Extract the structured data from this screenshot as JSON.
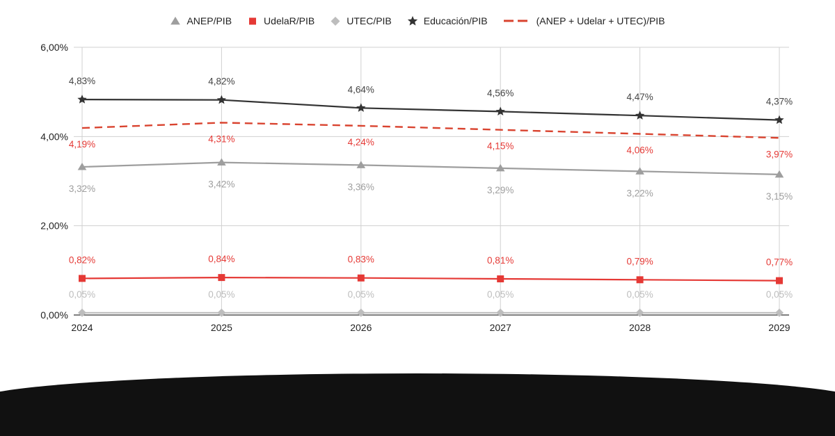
{
  "chart_data": {
    "type": "line",
    "categories": [
      "2024",
      "2025",
      "2026",
      "2027",
      "2028",
      "2029"
    ],
    "ylim": [
      0,
      6
    ],
    "yticks": [
      0,
      2,
      4,
      6
    ],
    "ytick_labels": [
      "0,00%",
      "2,00%",
      "4,00%",
      "6,00%"
    ],
    "grid": true,
    "legend_position": "top-center",
    "series": [
      {
        "name": "ANEP/PIB",
        "marker": "triangle",
        "line": "solid",
        "color": "#9e9e9e",
        "label_color": "#9e9e9e",
        "label_position": "below",
        "values": [
          3.32,
          3.42,
          3.36,
          3.29,
          3.22,
          3.15
        ],
        "labels": [
          "3,32%",
          "3,42%",
          "3,36%",
          "3,29%",
          "3,22%",
          "3,15%"
        ]
      },
      {
        "name": "UdelaR/PIB",
        "marker": "square",
        "line": "solid",
        "color": "#e53935",
        "label_color": "#e53935",
        "label_position": "above",
        "values": [
          0.82,
          0.84,
          0.83,
          0.81,
          0.79,
          0.77
        ],
        "labels": [
          "0,82%",
          "0,84%",
          "0,83%",
          "0,81%",
          "0,79%",
          "0,77%"
        ]
      },
      {
        "name": "UTEC/PIB",
        "marker": "diamond",
        "line": "solid",
        "color": "#bdbdbd",
        "label_color": "#bdbdbd",
        "label_position": "above",
        "values": [
          0.05,
          0.05,
          0.05,
          0.05,
          0.05,
          0.05
        ],
        "labels": [
          "0,05%",
          "0,05%",
          "0,05%",
          "0,05%",
          "0,05%",
          "0,05%"
        ]
      },
      {
        "name": "Educación/PIB",
        "marker": "star",
        "line": "solid",
        "color": "#333333",
        "label_color": "#444444",
        "label_position": "above",
        "values": [
          4.83,
          4.82,
          4.64,
          4.56,
          4.47,
          4.37
        ],
        "labels": [
          "4,83%",
          "4,82%",
          "4,64%",
          "4,56%",
          "4,47%",
          "4,37%"
        ]
      },
      {
        "name": "(ANEP + Udelar + UTEC)/PIB",
        "marker": "none",
        "line": "dashed",
        "color": "#d9432f",
        "label_color": "#e53935",
        "label_position": "below",
        "values": [
          4.19,
          4.31,
          4.24,
          4.15,
          4.06,
          3.97
        ],
        "labels": [
          "4,19%",
          "4,31%",
          "4,24%",
          "4,15%",
          "4,06%",
          "3,97%"
        ]
      }
    ]
  }
}
